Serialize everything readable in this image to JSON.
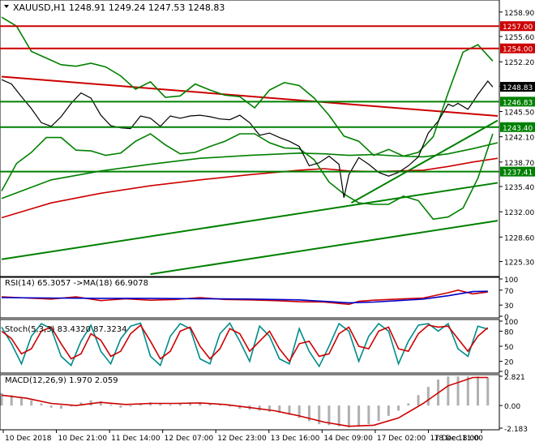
{
  "chart_data": [
    {
      "type": "line",
      "panel": "price",
      "symbol_header": "XAUUSD,H1  1248.91 1249.24 1247.53 1248.83",
      "ylim": [
        1223.5,
        1260.3
      ],
      "yticks": [
        "1258.90",
        "1255.60",
        "1252.20",
        "1248.90",
        "1245.50",
        "1242.10",
        "1238.70",
        "1235.40",
        "1232.00",
        "1228.60",
        "1225.30"
      ],
      "current_price": "1248.83",
      "levels": [
        {
          "label": "1257.00",
          "value": 1257.0,
          "color": "#cc0000"
        },
        {
          "label": "1254.00",
          "value": 1254.0,
          "color": "#cc0000"
        },
        {
          "label": "1246.83",
          "value": 1246.83,
          "color": "#008000"
        },
        {
          "label": "1243.40",
          "value": 1243.4,
          "color": "#008000"
        },
        {
          "label": "1237.41",
          "value": 1237.41,
          "color": "#008000"
        }
      ],
      "trendlines": [
        {
          "color": "#cc0000",
          "from": [
            0,
            1250.2
          ],
          "to": [
            100,
            1244.9
          ]
        },
        {
          "color": "#008000",
          "from": [
            70.5,
            1233.2
          ],
          "to": [
            100,
            1244.3
          ]
        },
        {
          "color": "#008000",
          "from": [
            0,
            1225.6
          ],
          "to": [
            100,
            1235.9
          ]
        },
        {
          "color": "#008000",
          "from": [
            30,
            1223.6
          ],
          "to": [
            100,
            1230.8
          ]
        }
      ],
      "series": [
        {
          "name": "MA slow",
          "color": "#cc0000",
          "x": [
            0,
            10,
            20,
            30,
            40,
            50,
            60,
            65,
            70,
            75,
            80,
            85,
            90,
            95,
            100
          ],
          "values": [
            1231.2,
            1233.2,
            1234.5,
            1235.5,
            1236.3,
            1237.0,
            1237.6,
            1237.8,
            1237.5,
            1237.4,
            1237.5,
            1237.6,
            1238.1,
            1238.7,
            1239.2
          ]
        },
        {
          "name": "MA mid",
          "color": "#008000",
          "x": [
            0,
            10,
            20,
            30,
            40,
            50,
            60,
            65,
            70,
            75,
            80,
            85,
            90,
            95,
            100
          ],
          "values": [
            1233.8,
            1236.3,
            1237.5,
            1238.4,
            1239.2,
            1239.6,
            1239.9,
            1239.8,
            1239.6,
            1239.7,
            1239.5,
            1239.4,
            1239.8,
            1240.5,
            1241.3
          ]
        },
        {
          "name": "Bollinger upper",
          "color": "#008000",
          "x": [
            0,
            3,
            6,
            9,
            12,
            15,
            18,
            21,
            24,
            27,
            30,
            33,
            36,
            39,
            42,
            45,
            48,
            51,
            54,
            57,
            60,
            63,
            66,
            69,
            72,
            75,
            78,
            81,
            84,
            87,
            90,
            93,
            96,
            99
          ],
          "values": [
            1258.2,
            1257.0,
            1253.6,
            1252.7,
            1251.8,
            1251.6,
            1252.0,
            1251.5,
            1250.3,
            1248.5,
            1249.5,
            1247.4,
            1247.6,
            1249.2,
            1248.4,
            1247.7,
            1247.5,
            1246.0,
            1248.4,
            1249.4,
            1249.0,
            1247.3,
            1245.0,
            1242.2,
            1241.5,
            1239.6,
            1240.4,
            1239.5,
            1240.0,
            1242.1,
            1248.0,
            1253.5,
            1254.5,
            1252.3
          ]
        },
        {
          "name": "Bollinger lower",
          "color": "#008000",
          "x": [
            0,
            3,
            6,
            9,
            12,
            15,
            18,
            21,
            24,
            27,
            30,
            33,
            36,
            39,
            42,
            45,
            48,
            51,
            54,
            57,
            60,
            63,
            66,
            69,
            72,
            75,
            78,
            81,
            84,
            87,
            90,
            93,
            96,
            99
          ],
          "values": [
            1234.8,
            1238.5,
            1240.0,
            1242.0,
            1242.0,
            1240.3,
            1240.2,
            1239.6,
            1239.9,
            1241.5,
            1242.5,
            1241.0,
            1239.8,
            1240.0,
            1240.8,
            1241.5,
            1242.5,
            1242.5,
            1241.3,
            1240.6,
            1240.5,
            1239.0,
            1236.0,
            1234.4,
            1233.2,
            1233.0,
            1233.0,
            1234.1,
            1233.5,
            1231.0,
            1231.3,
            1232.5,
            1236.5,
            1242.5
          ]
        },
        {
          "name": "Price",
          "color": "#000000",
          "x": [
            0,
            2,
            4,
            6,
            8,
            10,
            12,
            14,
            16,
            18,
            20,
            22,
            24,
            26,
            28,
            30,
            32,
            34,
            36,
            38,
            40,
            42,
            44,
            46,
            48,
            50,
            52,
            54,
            56,
            58,
            60,
            62,
            64,
            66,
            68,
            69,
            70,
            72,
            74,
            76,
            78,
            80,
            82,
            84,
            86,
            88,
            90,
            91,
            92,
            94,
            96,
            98,
            99
          ],
          "values": [
            1249.8,
            1249.2,
            1247.5,
            1245.9,
            1244.0,
            1243.5,
            1244.8,
            1246.6,
            1248.0,
            1247.3,
            1245.0,
            1243.6,
            1243.3,
            1243.2,
            1244.9,
            1244.6,
            1243.5,
            1244.9,
            1244.6,
            1244.9,
            1245.0,
            1244.8,
            1244.5,
            1244.4,
            1245.0,
            1244.0,
            1242.3,
            1242.6,
            1242.0,
            1241.5,
            1240.8,
            1238.2,
            1238.6,
            1239.5,
            1238.4,
            1233.9,
            1237.0,
            1239.3,
            1238.4,
            1237.3,
            1236.8,
            1237.3,
            1238.2,
            1239.4,
            1242.6,
            1244.2,
            1246.5,
            1246.2,
            1246.6,
            1245.8,
            1247.8,
            1249.6,
            1248.8
          ]
        }
      ]
    },
    {
      "type": "line",
      "panel": "rsi",
      "label": "RSI(14) 65.3057  ->MA(18) 66.9078",
      "ylim": [
        0,
        100
      ],
      "yticks": [
        "100",
        "70",
        "30",
        "0"
      ],
      "series": [
        {
          "name": "RSI(14)",
          "color": "#cc0000",
          "x": [
            0,
            5,
            10,
            15,
            20,
            25,
            30,
            35,
            40,
            45,
            50,
            55,
            60,
            65,
            70,
            72,
            75,
            80,
            85,
            90,
            92,
            95,
            98
          ],
          "values": [
            52,
            49,
            46,
            52,
            42,
            47,
            43,
            45,
            50,
            45,
            44,
            42,
            39,
            38,
            32,
            40,
            43,
            46,
            49,
            63,
            70,
            60,
            65
          ]
        },
        {
          "name": "MA(18)",
          "color": "#0000cc",
          "x": [
            0,
            10,
            20,
            30,
            40,
            50,
            60,
            65,
            70,
            75,
            80,
            85,
            90,
            95,
            98
          ],
          "values": [
            50,
            49,
            48,
            48,
            47,
            46,
            44,
            40,
            36,
            38,
            42,
            46,
            55,
            66,
            67
          ]
        }
      ]
    },
    {
      "type": "line",
      "panel": "stoch",
      "label": "Stoch(5,3,3) 83.4320 87.3234",
      "ylim": [
        0,
        100
      ],
      "yticks": [
        "100",
        "80",
        "50",
        "20",
        "0"
      ],
      "series": [
        {
          "name": "Stoch %K",
          "color": "#008b8b",
          "x": [
            0,
            2,
            4,
            6,
            8,
            10,
            12,
            14,
            16,
            18,
            20,
            22,
            24,
            26,
            28,
            30,
            32,
            34,
            36,
            38,
            40,
            42,
            44,
            46,
            48,
            50,
            52,
            54,
            56,
            58,
            60,
            62,
            64,
            66,
            68,
            70,
            72,
            74,
            76,
            78,
            80,
            82,
            84,
            86,
            88,
            90,
            92,
            94,
            96,
            98
          ],
          "values": [
            88,
            55,
            15,
            70,
            95,
            85,
            30,
            12,
            60,
            92,
            40,
            15,
            65,
            90,
            96,
            30,
            12,
            70,
            95,
            85,
            25,
            15,
            75,
            96,
            60,
            20,
            90,
            70,
            25,
            15,
            85,
            40,
            10,
            50,
            95,
            80,
            20,
            70,
            95,
            80,
            15,
            60,
            92,
            95,
            80,
            95,
            45,
            30,
            90,
            84
          ]
        },
        {
          "name": "Stoch %D",
          "color": "#cc0000",
          "x": [
            0,
            2,
            4,
            6,
            8,
            10,
            12,
            14,
            16,
            18,
            20,
            22,
            24,
            26,
            28,
            30,
            32,
            34,
            36,
            38,
            40,
            42,
            44,
            46,
            48,
            50,
            52,
            54,
            56,
            58,
            60,
            62,
            64,
            66,
            68,
            70,
            72,
            74,
            76,
            78,
            80,
            82,
            84,
            86,
            88,
            90,
            92,
            94,
            96,
            98
          ],
          "values": [
            80,
            65,
            35,
            45,
            80,
            88,
            55,
            25,
            35,
            75,
            62,
            30,
            40,
            75,
            92,
            60,
            25,
            40,
            80,
            88,
            50,
            25,
            45,
            85,
            75,
            40,
            60,
            80,
            45,
            20,
            55,
            60,
            30,
            35,
            75,
            88,
            50,
            45,
            80,
            88,
            45,
            40,
            75,
            92,
            88,
            90,
            65,
            40,
            70,
            87
          ]
        }
      ]
    },
    {
      "type": "bar",
      "panel": "macd",
      "label": "MACD(12,26,9) 1.970 2.059",
      "ylim": [
        -2.183,
        2.821
      ],
      "yticks": [
        "2.821",
        "0.00",
        "-2.183"
      ],
      "series": [
        {
          "name": "MACD histogram",
          "color": "#b0b0b0",
          "x": [
            0,
            2,
            4,
            6,
            8,
            10,
            12,
            14,
            16,
            18,
            20,
            22,
            24,
            26,
            28,
            30,
            32,
            34,
            36,
            38,
            40,
            42,
            44,
            46,
            48,
            50,
            52,
            54,
            56,
            58,
            60,
            62,
            64,
            66,
            68,
            70,
            72,
            74,
            76,
            78,
            80,
            82,
            84,
            86,
            88,
            90,
            92,
            94,
            96,
            98
          ],
          "values": [
            1.2,
            1.0,
            0.8,
            0.5,
            0.2,
            -0.2,
            -0.3,
            -0.1,
            0.3,
            0.5,
            0.4,
            0.1,
            -0.2,
            -0.1,
            0.2,
            0.3,
            0.2,
            0.1,
            0.2,
            0.3,
            0.3,
            0.2,
            0.1,
            -0.1,
            -0.3,
            -0.4,
            -0.5,
            -0.6,
            -0.7,
            -0.9,
            -1.2,
            -1.5,
            -1.8,
            -1.9,
            -2.0,
            -2.1,
            -2.0,
            -1.8,
            -1.5,
            -1.0,
            -0.5,
            0.2,
            1.0,
            1.8,
            2.5,
            2.8,
            2.8,
            2.8,
            2.8,
            2.7
          ]
        },
        {
          "name": "Signal",
          "color": "#cc0000",
          "x": [
            0,
            5,
            10,
            15,
            20,
            25,
            30,
            35,
            40,
            45,
            50,
            55,
            60,
            65,
            70,
            75,
            80,
            85,
            90,
            95,
            98
          ],
          "values": [
            1.0,
            0.7,
            0.2,
            0.0,
            0.3,
            0.1,
            0.2,
            0.2,
            0.25,
            0.1,
            -0.2,
            -0.5,
            -1.0,
            -1.6,
            -2.0,
            -1.9,
            -1.2,
            0.2,
            1.9,
            2.7,
            2.7
          ]
        }
      ]
    }
  ],
  "time_axis": [
    "10 Dec 2018",
    "10 Dec 21:00",
    "11 Dec 14:00",
    "12 Dec 07:00",
    "12 Dec 23:00",
    "13 Dec 16:00",
    "14 Dec 09:00",
    "17 Dec 02:00",
    "17 Dec 18:00",
    "18 Dec 11:00"
  ],
  "colors": {
    "bg": "#ffffff",
    "grid": "#c8c8c8",
    "text": "#000000",
    "level_red": "#cc0000",
    "level_green": "#008000",
    "price_label_bg": "#000000",
    "price_label_text": "#ffffff"
  }
}
